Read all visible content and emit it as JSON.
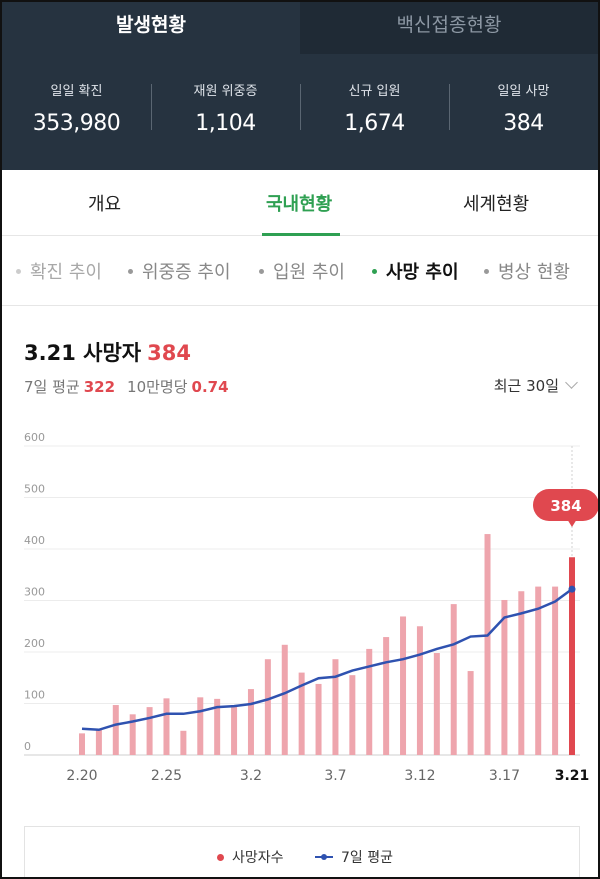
{
  "top_tabs": [
    {
      "label": "발생현황",
      "active": true
    },
    {
      "label": "백신접종현황",
      "active": false
    }
  ],
  "stats": [
    {
      "label": "일일 확진",
      "value": "353,980"
    },
    {
      "label": "재원 위중증",
      "value": "1,104"
    },
    {
      "label": "신규 입원",
      "value": "1,674"
    },
    {
      "label": "일일 사망",
      "value": "384"
    }
  ],
  "main_tabs": [
    {
      "label": "개요",
      "active": false
    },
    {
      "label": "국내현황",
      "active": true
    },
    {
      "label": "세계현황",
      "active": false
    }
  ],
  "sub_tabs": [
    {
      "label": "확진 추이",
      "active": false
    },
    {
      "label": "위중증 추이",
      "active": false
    },
    {
      "label": "입원 추이",
      "active": false
    },
    {
      "label": "사망 추이",
      "active": true
    },
    {
      "label": "병상 현황",
      "active": false
    }
  ],
  "summary": {
    "title_prefix": "3.21 사망자",
    "title_value": "384",
    "avg_label": "7일 평균",
    "avg_value": "322",
    "per100k_label": "10만명당",
    "per100k_value": "0.74",
    "period_label": "최근 30일"
  },
  "colors": {
    "accent_green": "#2fa052",
    "death_red": "#e0484f",
    "bar_pink": "#eea5ad",
    "avg_blue": "#2f52b0",
    "header_bg": "#263340"
  },
  "chart_data": {
    "type": "bar",
    "ylim": [
      0,
      600
    ],
    "yticks": [
      0,
      100,
      200,
      300,
      400,
      500,
      600
    ],
    "x": [
      "2.20",
      "2.21",
      "2.22",
      "2.23",
      "2.24",
      "2.25",
      "2.26",
      "2.27",
      "2.28",
      "3.1",
      "3.2",
      "3.3",
      "3.4",
      "3.5",
      "3.6",
      "3.7",
      "3.8",
      "3.9",
      "3.10",
      "3.11",
      "3.12",
      "3.13",
      "3.14",
      "3.15",
      "3.16",
      "3.17",
      "3.18",
      "3.19",
      "3.20",
      "3.21"
    ],
    "xtick_labels": [
      "2.20",
      "2.25",
      "3.2",
      "3.7",
      "3.12",
      "3.17",
      "3.21"
    ],
    "series": [
      {
        "name": "사망자수",
        "type": "bar",
        "values": [
          42,
          50,
          97,
          79,
          93,
          110,
          47,
          112,
          109,
          96,
          128,
          186,
          214,
          160,
          138,
          186,
          155,
          206,
          229,
          269,
          250,
          198,
          293,
          163,
          429,
          301,
          318,
          327,
          327,
          384
        ]
      },
      {
        "name": "7일 평균",
        "type": "line",
        "values": [
          51,
          49,
          59,
          65,
          72,
          80,
          80,
          85,
          93,
          95,
          99,
          108,
          120,
          135,
          149,
          152,
          164,
          172,
          180,
          186,
          195,
          206,
          215,
          230,
          232,
          267,
          275,
          284,
          298,
          322
        ]
      }
    ],
    "highlight": {
      "label": "3.21",
      "value": "384"
    },
    "legend": [
      "사망자수",
      "7일 평균"
    ],
    "legend_position": "bottom"
  }
}
